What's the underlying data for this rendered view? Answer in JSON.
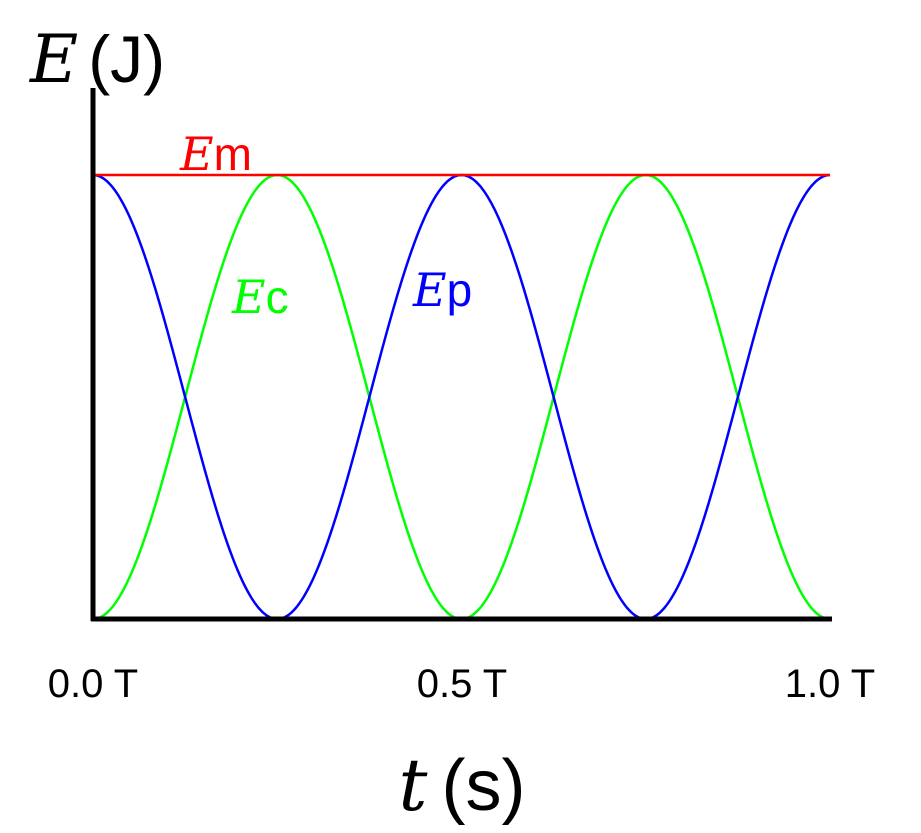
{
  "chart_data": {
    "type": "line",
    "xlabel": {
      "symbol": "t",
      "unit": "(s)"
    },
    "ylabel": {
      "symbol": "E",
      "unit": "(J)"
    },
    "xlim": [
      0,
      1
    ],
    "ylim": [
      0,
      1
    ],
    "x_ticks": [
      {
        "value": 0.0,
        "label": "0.0 T"
      },
      {
        "value": 0.5,
        "label": "0.5 T"
      },
      {
        "value": 1.0,
        "label": "1.0 T"
      }
    ],
    "y_ticks": [],
    "grid": false,
    "series": [
      {
        "name": "Em",
        "symbol": "E",
        "subscript": "m",
        "color": "#ff0000",
        "formula": "1"
      },
      {
        "name": "Ec",
        "symbol": "E",
        "subscript": "c",
        "color": "#00ff00",
        "formula": "sin^2(2*pi*t)"
      },
      {
        "name": "Ep",
        "symbol": "E",
        "subscript": "p",
        "color": "#0000ff",
        "formula": "cos^2(2*pi*t)"
      }
    ],
    "sampled_points": {
      "x": [
        0,
        0.0625,
        0.125,
        0.1875,
        0.25,
        0.3125,
        0.375,
        0.4375,
        0.5,
        0.5625,
        0.625,
        0.6875,
        0.75,
        0.8125,
        0.875,
        0.9375,
        1.0
      ],
      "Em": [
        1,
        1,
        1,
        1,
        1,
        1,
        1,
        1,
        1,
        1,
        1,
        1,
        1,
        1,
        1,
        1,
        1
      ],
      "Ec": [
        0,
        0.146,
        0.5,
        0.854,
        1,
        0.854,
        0.5,
        0.146,
        0,
        0.146,
        0.5,
        0.854,
        1,
        0.854,
        0.5,
        0.146,
        0
      ],
      "Ep": [
        1,
        0.854,
        0.5,
        0.146,
        0,
        0.146,
        0.5,
        0.854,
        1,
        0.854,
        0.5,
        0.146,
        0,
        0.146,
        0.5,
        0.854,
        1
      ]
    }
  }
}
